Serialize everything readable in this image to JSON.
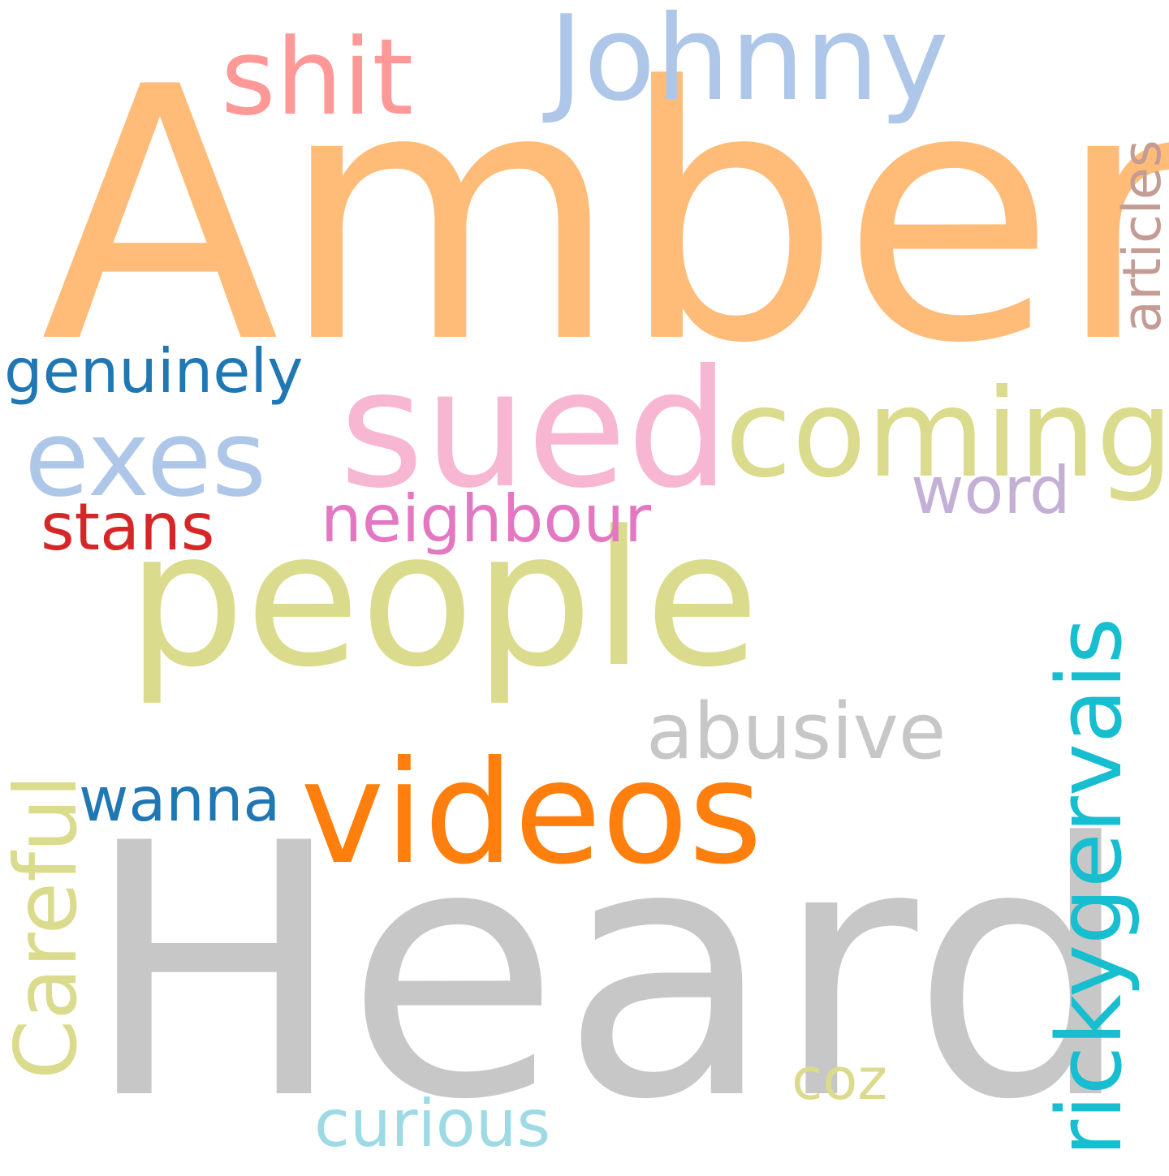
{
  "word_cloud": {
    "words": [
      {
        "text": "Amber",
        "color": "#ffbb78"
      },
      {
        "text": "Heard",
        "color": "#c7c7c7"
      },
      {
        "text": "people",
        "color": "#dbdb8d"
      },
      {
        "text": "sued",
        "color": "#f7b6d2"
      },
      {
        "text": "coming",
        "color": "#dbdb8d"
      },
      {
        "text": "exes",
        "color": "#aec7e8"
      },
      {
        "text": "videos",
        "color": "#ff7f0e"
      },
      {
        "text": "Johnny",
        "color": "#aec7e8"
      },
      {
        "text": "shit",
        "color": "#ff9896"
      },
      {
        "text": "abusive",
        "color": "#c7c7c7"
      },
      {
        "text": "neighbour",
        "color": "#e377c2"
      },
      {
        "text": "genuinely",
        "color": "#1f77b4"
      },
      {
        "text": "stans",
        "color": "#d62728"
      },
      {
        "text": "word",
        "color": "#c5b0d5"
      },
      {
        "text": "wanna",
        "color": "#1f77b4"
      },
      {
        "text": "coz",
        "color": "#dbdb8d"
      },
      {
        "text": "curious",
        "color": "#9edae5"
      },
      {
        "text": "rickygervais",
        "color": "#17becf"
      },
      {
        "text": "Careful",
        "color": "#dbdb8d"
      },
      {
        "text": "articles",
        "color": "#c49c94"
      }
    ]
  }
}
